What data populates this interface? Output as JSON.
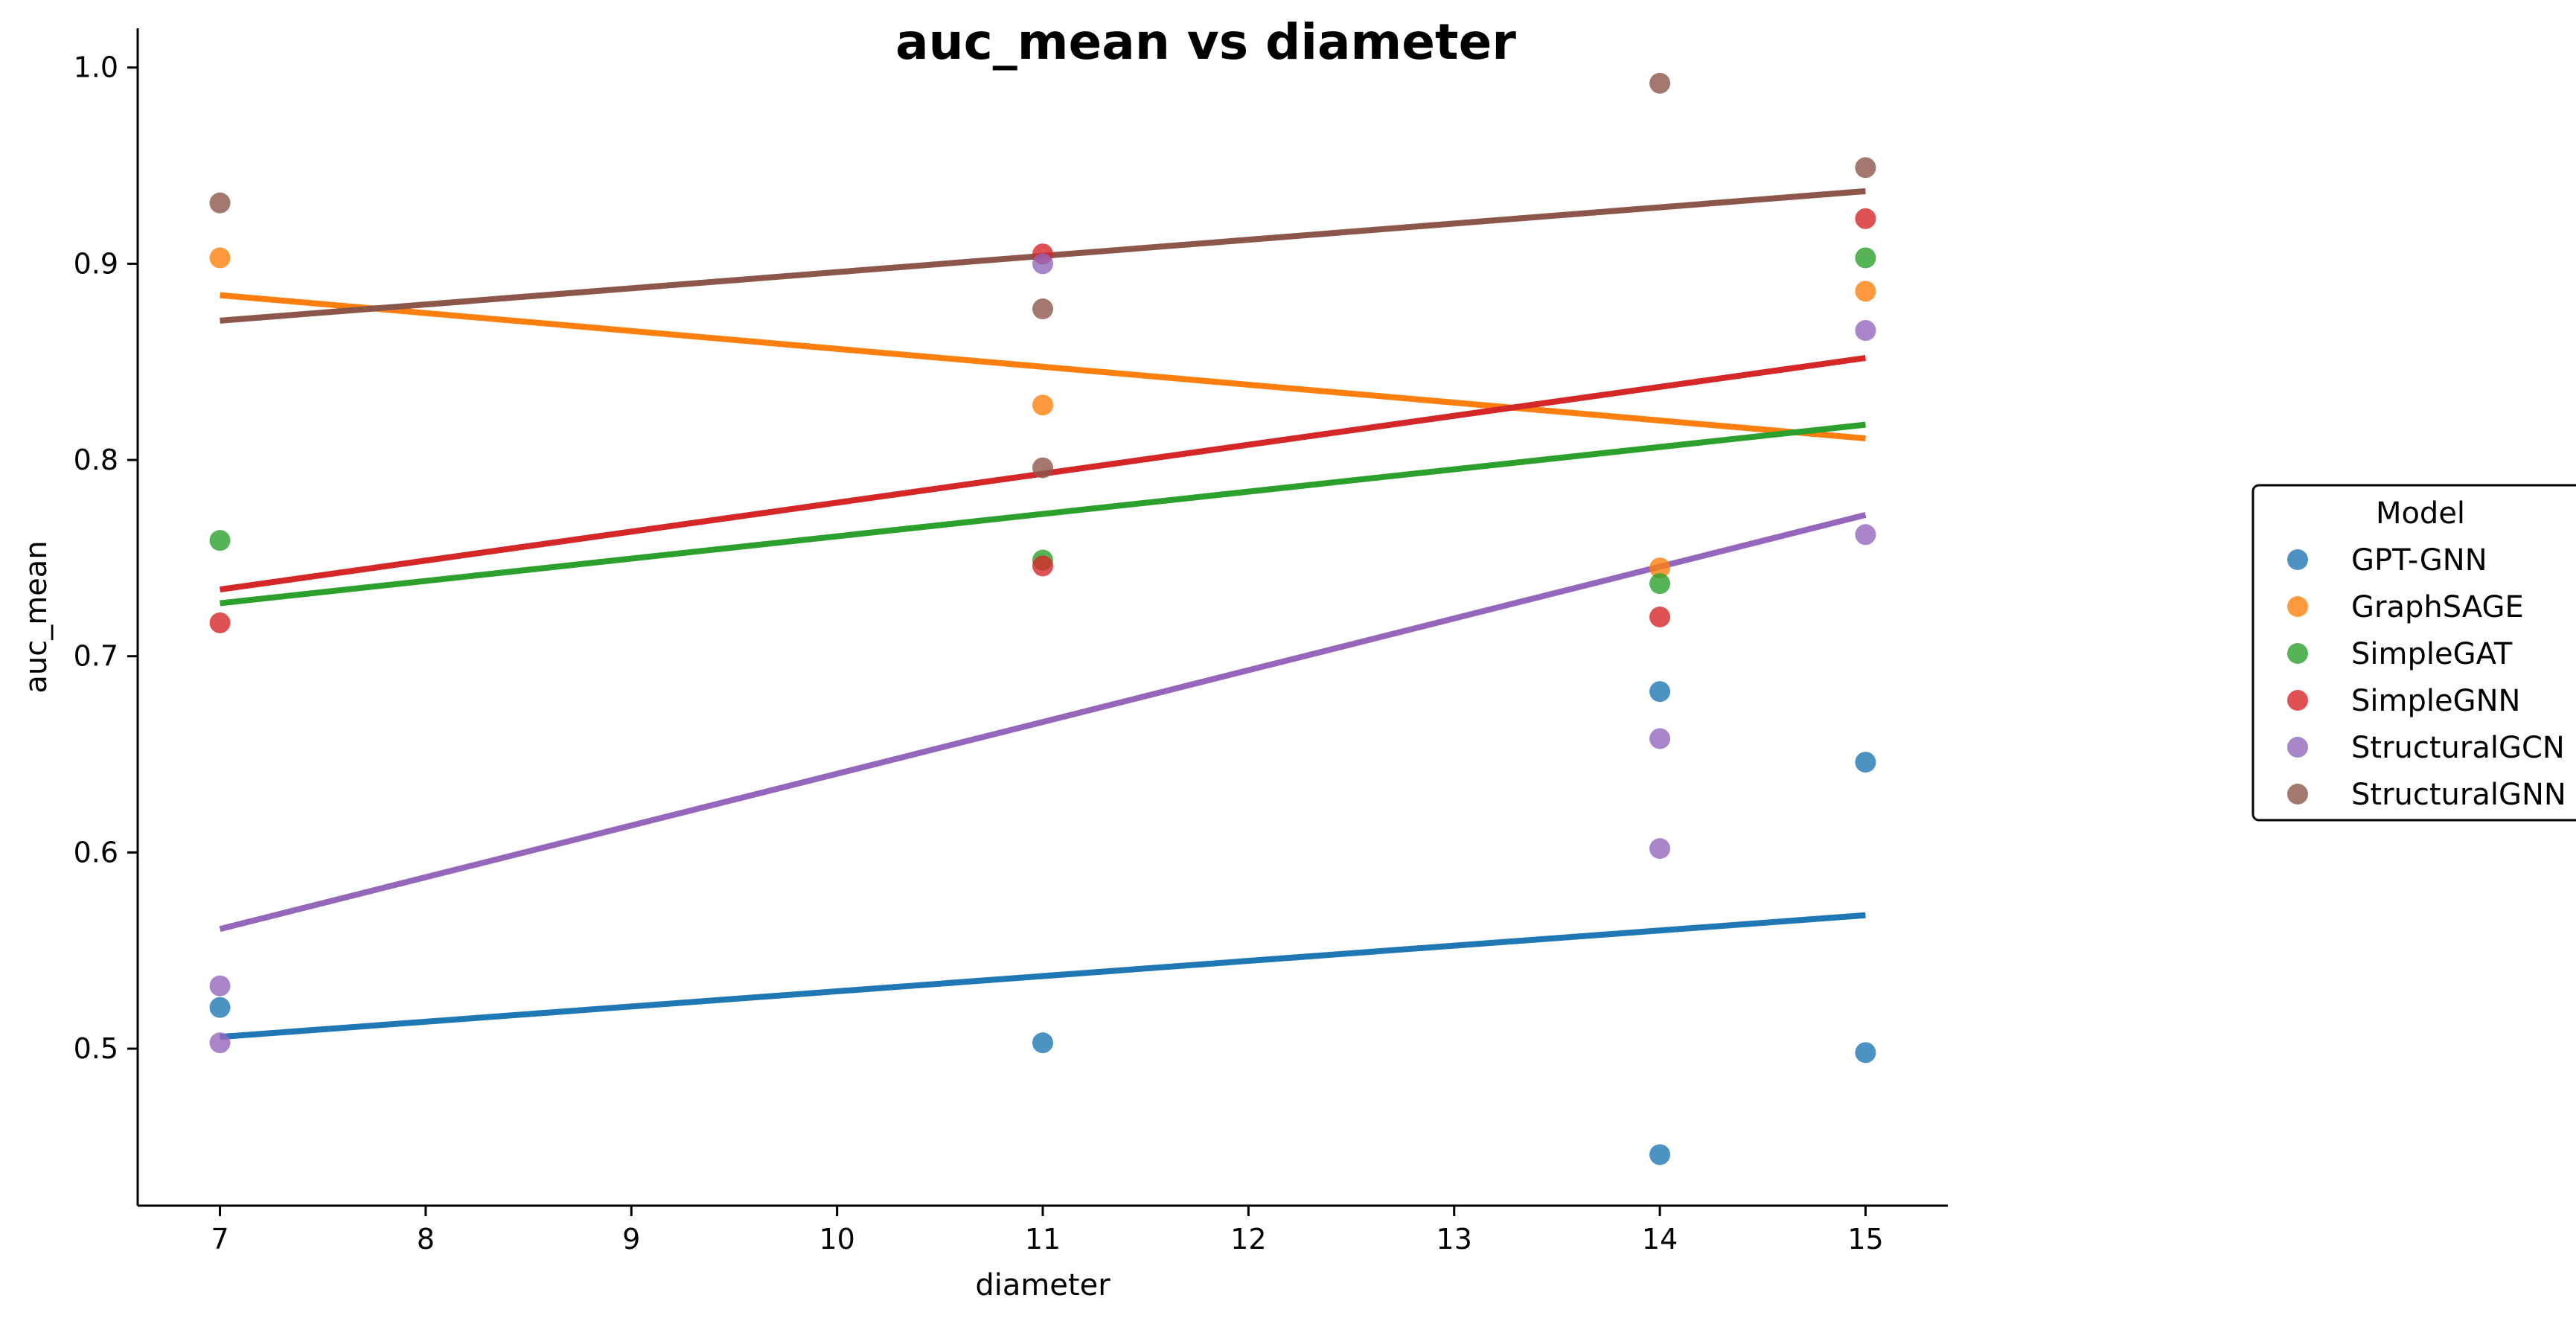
{
  "chart_data": {
    "type": "scatter",
    "title": "auc_mean vs diameter",
    "xlabel": "diameter",
    "ylabel": "auc_mean",
    "xlim": [
      6.6,
      15.4
    ],
    "ylim": [
      0.42,
      1.02
    ],
    "xticks": [
      7,
      8,
      9,
      10,
      11,
      12,
      13,
      14,
      15
    ],
    "yticks": [
      0.5,
      0.6,
      0.7,
      0.8,
      0.9,
      1.0
    ],
    "ytick_labels": [
      "0.5",
      "0.6",
      "0.7",
      "0.8",
      "0.9",
      "1.0"
    ],
    "grid": false,
    "legend": {
      "title": "Model",
      "placement": "right"
    },
    "series": [
      {
        "name": "GPT-GNN",
        "color": "#1f77b4",
        "points": [
          [
            7,
            0.521
          ],
          [
            11,
            0.503
          ],
          [
            14,
            0.682
          ],
          [
            14,
            0.446
          ],
          [
            15,
            0.646
          ],
          [
            15,
            0.498
          ]
        ],
        "trend": [
          [
            7,
            0.506
          ],
          [
            15,
            0.568
          ]
        ]
      },
      {
        "name": "GraphSAGE",
        "color": "#ff7f0e",
        "points": [
          [
            7,
            0.903
          ],
          [
            11,
            0.828
          ],
          [
            14,
            0.745
          ],
          [
            15,
            0.886
          ]
        ],
        "trend": [
          [
            7,
            0.884
          ],
          [
            15,
            0.811
          ]
        ]
      },
      {
        "name": "SimpleGAT",
        "color": "#2ca02c",
        "points": [
          [
            7,
            0.759
          ],
          [
            11,
            0.749
          ],
          [
            14,
            0.737
          ],
          [
            15,
            0.903
          ]
        ],
        "trend": [
          [
            7,
            0.727
          ],
          [
            15,
            0.818
          ]
        ]
      },
      {
        "name": "SimpleGNN",
        "color": "#d62728",
        "points": [
          [
            7,
            0.717
          ],
          [
            11,
            0.905
          ],
          [
            11,
            0.746
          ],
          [
            14,
            0.72
          ],
          [
            15,
            0.923
          ]
        ],
        "trend": [
          [
            7,
            0.734
          ],
          [
            15,
            0.852
          ]
        ]
      },
      {
        "name": "StructuralGCN",
        "color": "#9467bd",
        "points": [
          [
            7,
            0.532
          ],
          [
            7,
            0.503
          ],
          [
            11,
            0.9
          ],
          [
            14,
            0.658
          ],
          [
            14,
            0.602
          ],
          [
            15,
            0.866
          ],
          [
            15,
            0.762
          ]
        ],
        "trend": [
          [
            7,
            0.561
          ],
          [
            15,
            0.772
          ]
        ]
      },
      {
        "name": "StructuralGNN",
        "color": "#8c564b",
        "points": [
          [
            7,
            0.931
          ],
          [
            11,
            0.877
          ],
          [
            11,
            0.796
          ],
          [
            14,
            0.992
          ],
          [
            15,
            0.949
          ]
        ],
        "trend": [
          [
            7,
            0.871
          ],
          [
            15,
            0.937
          ]
        ]
      }
    ]
  }
}
